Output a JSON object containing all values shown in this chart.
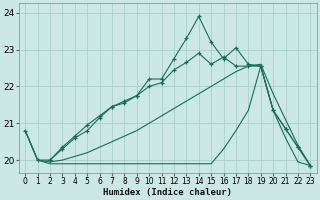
{
  "xlabel": "Humidex (Indice chaleur)",
  "bg_color": "#cce8e4",
  "grid_color": "#aad0cc",
  "line_color": "#1a6b5e",
  "xlim": [
    -0.5,
    23.5
  ],
  "ylim": [
    19.65,
    24.25
  ],
  "yticks": [
    20,
    21,
    22,
    23,
    24
  ],
  "xticks": [
    0,
    1,
    2,
    3,
    4,
    5,
    6,
    7,
    8,
    9,
    10,
    11,
    12,
    13,
    14,
    15,
    16,
    17,
    18,
    19,
    20,
    21,
    22,
    23
  ],
  "series": [
    {
      "x": [
        0,
        1,
        2,
        3,
        4,
        5,
        6,
        7,
        8,
        9,
        10,
        11,
        12,
        13,
        14,
        15,
        16,
        17,
        18,
        19,
        20,
        21,
        22,
        23
      ],
      "y": [
        20.8,
        20.0,
        20.0,
        20.3,
        20.6,
        20.8,
        21.15,
        21.45,
        21.55,
        21.75,
        22.2,
        22.2,
        22.75,
        23.3,
        23.9,
        23.2,
        22.75,
        23.05,
        22.6,
        22.55,
        21.35,
        20.85,
        20.35,
        19.85
      ],
      "marker": true
    },
    {
      "x": [
        0,
        1,
        2,
        3,
        4,
        5,
        6,
        7,
        8,
        9,
        10,
        11,
        12,
        13,
        14,
        15,
        16,
        17,
        18,
        19,
        20,
        21,
        22,
        23
      ],
      "y": [
        20.8,
        20.0,
        19.9,
        19.9,
        19.9,
        19.9,
        19.9,
        19.9,
        19.9,
        19.9,
        19.9,
        19.9,
        19.9,
        19.9,
        19.9,
        19.9,
        20.3,
        20.8,
        21.35,
        22.55,
        21.35,
        20.6,
        19.95,
        19.85
      ],
      "marker": false
    },
    {
      "x": [
        0,
        1,
        2,
        3,
        4,
        5,
        6,
        7,
        8,
        9,
        10,
        11,
        12,
        13,
        14,
        15,
        16,
        17,
        18,
        19,
        20,
        21,
        22,
        23
      ],
      "y": [
        20.8,
        20.0,
        19.95,
        20.0,
        20.1,
        20.2,
        20.35,
        20.5,
        20.65,
        20.8,
        21.0,
        21.2,
        21.4,
        21.6,
        21.8,
        22.0,
        22.2,
        22.4,
        22.55,
        22.6,
        21.8,
        21.1,
        20.4,
        19.85
      ],
      "marker": false
    },
    {
      "x": [
        2,
        3,
        4,
        5,
        6,
        7,
        8,
        9,
        10,
        11,
        12,
        13,
        14,
        15,
        16,
        17,
        18,
        19,
        20,
        21,
        22,
        23
      ],
      "y": [
        20.0,
        20.35,
        20.65,
        20.95,
        21.2,
        21.45,
        21.6,
        21.75,
        22.0,
        22.1,
        22.45,
        22.65,
        22.9,
        22.6,
        22.8,
        22.55,
        22.55,
        22.55,
        21.35,
        20.85,
        20.35,
        19.85
      ],
      "marker": true
    }
  ]
}
